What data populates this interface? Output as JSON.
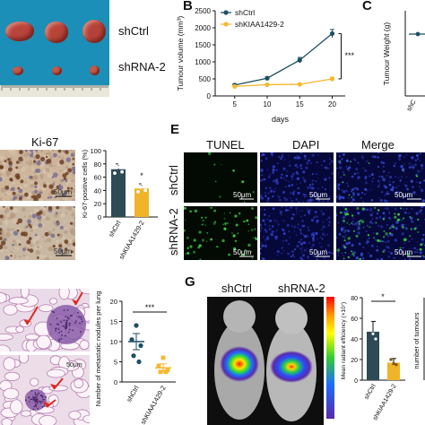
{
  "panels": {
    "b": "B",
    "c": "C",
    "e": "E",
    "g": "G"
  },
  "panel_a": {
    "label_ctrl": "shCtrl",
    "label_shrna": "shRNA-2",
    "colors": {
      "background": "#1b8fb7",
      "tumour_large": "#b8453c",
      "tumour_small": "#c05a4a"
    }
  },
  "panel_ki67": {
    "title": "Ki-67",
    "scale1": "50μm",
    "scale2": "50μm"
  },
  "panel_e": {
    "headers": [
      "TUNEL",
      "DAPI",
      "Merge"
    ],
    "row_labels": [
      "shCtrl",
      "shRNA-2"
    ],
    "scale": "50μm",
    "colors": {
      "tunel_bg": "#030a03",
      "dapi_bg": "#06083a",
      "merge_bg": "#06083a",
      "tunel_dot": "#3dd04a",
      "dapi_dot": "#3040c8"
    }
  },
  "panel_g": {
    "label_ctrl": "shCtrl",
    "label_shrna": "shRNA-2"
  },
  "panel_lung": {
    "scale": "50μm"
  },
  "chart_data": [
    {
      "id": "growth",
      "type": "line",
      "title": "",
      "xlabel": "days",
      "ylabel": "Tumour volume (mm³)",
      "x": [
        5,
        10,
        15,
        20
      ],
      "xlim": [
        2,
        22
      ],
      "ylim": [
        0,
        2500
      ],
      "yticks": [
        0,
        500,
        1000,
        1500,
        2000,
        2500
      ],
      "significance": "***",
      "series": [
        {
          "name": "shCtrl",
          "color": "#1d4f63",
          "values": [
            320,
            520,
            1050,
            1830
          ],
          "errors": [
            30,
            40,
            80,
            120
          ]
        },
        {
          "name": "shKIAA1429-2",
          "color": "#f5b830",
          "values": [
            280,
            330,
            340,
            500
          ],
          "errors": [
            20,
            25,
            25,
            50
          ]
        }
      ]
    },
    {
      "id": "tumour-weight",
      "type": "bar",
      "ylabel": "Tumour Weight (g)",
      "categories": [
        "shC"
      ],
      "values": [
        1
      ]
    },
    {
      "id": "ki67",
      "type": "bar",
      "title": "",
      "ylabel": "Ki-67-positive cells (%)",
      "categories": [
        "shCtrl",
        "shKIAA1429-2"
      ],
      "values": [
        72,
        43
      ],
      "errors": [
        8,
        7
      ],
      "ylim": [
        0,
        100
      ],
      "yticks": [
        0,
        20,
        40,
        60,
        80,
        100
      ],
      "significance": "*",
      "colors": [
        "#2d4a55",
        "#f0b429"
      ]
    },
    {
      "id": "metastatic",
      "type": "scatter",
      "ylabel": "Number of metastatic nodules per lung",
      "categories": [
        "shCtrl",
        "shKIAA1429-2"
      ],
      "means": [
        10,
        3.5
      ],
      "errors": [
        2,
        1
      ],
      "points": [
        [
          14,
          10.5,
          9,
          6.5,
          5
        ],
        [
          6,
          4,
          3,
          2.5,
          2.5
        ]
      ],
      "ylim": [
        0,
        20
      ],
      "yticks": [
        0,
        5,
        10,
        15,
        20
      ],
      "significance": "***",
      "colors": [
        "#1d4f63",
        "#f5b830"
      ]
    },
    {
      "id": "radiant",
      "type": "bar",
      "ylabel": "Mean radiant efficiency (×10⁷)",
      "categories": [
        "shCtrl",
        "shKIAA1429-2"
      ],
      "values": [
        47,
        17
      ],
      "errors": [
        10,
        4
      ],
      "ylim": [
        0,
        80
      ],
      "yticks": [
        0,
        20,
        40,
        60,
        80
      ],
      "significance": "*",
      "colors": [
        "#2d4a55",
        "#f0b429"
      ]
    },
    {
      "id": "tumour-count",
      "type": "bar",
      "ylabel": "number of tumours",
      "categories": [],
      "values": []
    }
  ]
}
